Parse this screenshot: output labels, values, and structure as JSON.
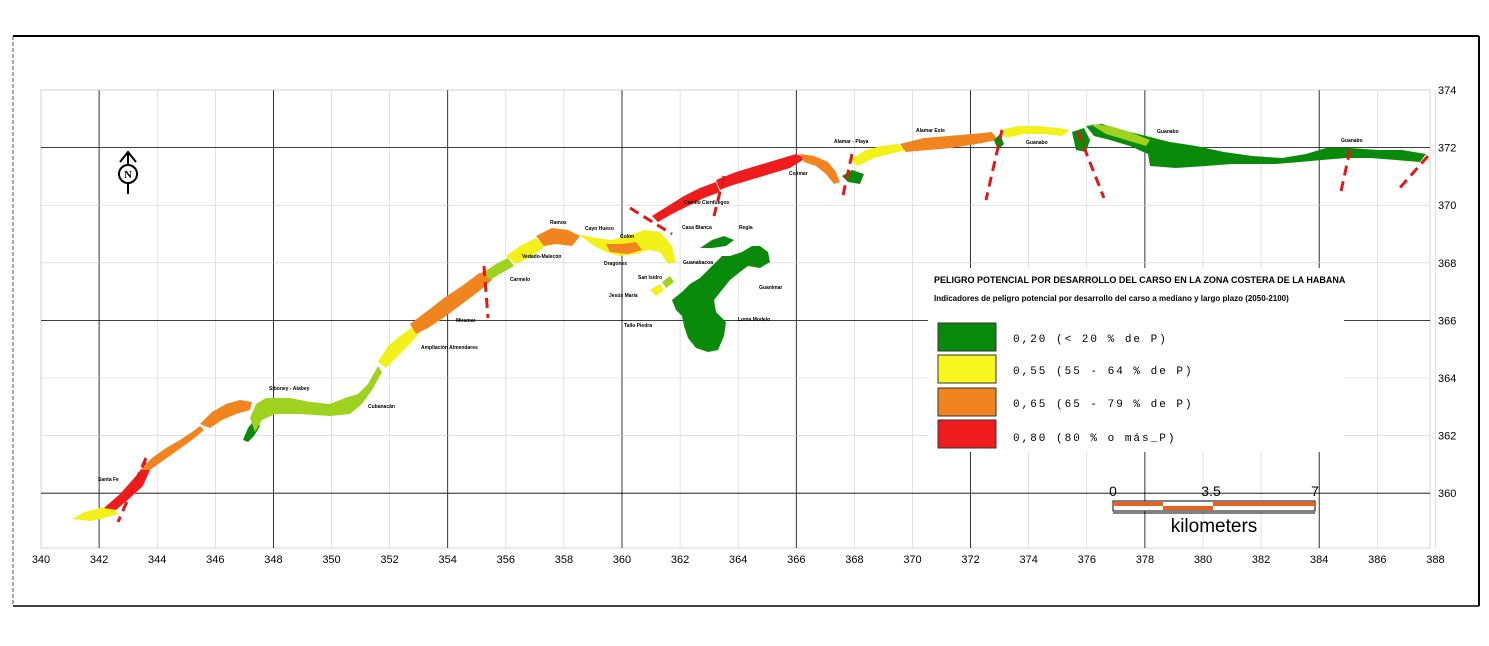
{
  "colors": {
    "very_low": "#0a8a0a",
    "low_green": "#9fd21e",
    "yellow": "#f2f21a",
    "orange": "#f0841e",
    "red": "#ee1c1c",
    "grid": "#000000"
  },
  "grid": {
    "x_labels": [
      "340",
      "342",
      "344",
      "346",
      "348",
      "350",
      "352",
      "354",
      "356",
      "358",
      "360",
      "362",
      "364",
      "366",
      "368",
      "370",
      "372",
      "374",
      "376",
      "378",
      "380",
      "382",
      "384",
      "386",
      "388"
    ],
    "y_labels": [
      "374",
      "372",
      "370",
      "368",
      "366",
      "364",
      "362",
      "360"
    ]
  },
  "north_arrow": {
    "letter": "N",
    "icon": "north-arrow-icon"
  },
  "places": [
    {
      "name": "Santa Fe"
    },
    {
      "name": "Siboney - Atabey"
    },
    {
      "name": "Cubanacán"
    },
    {
      "name": "Ampliación Almendares"
    },
    {
      "name": "Miramar"
    },
    {
      "name": "Carmelo"
    },
    {
      "name": "Vedado-Malecón"
    },
    {
      "name": "Ramos"
    },
    {
      "name": "Cayo Hueso"
    },
    {
      "name": "Colón"
    },
    {
      "name": "Dragones"
    },
    {
      "name": "San Isidro"
    },
    {
      "name": "Jesús María"
    },
    {
      "name": "Tallo Piedra"
    },
    {
      "name": "Casa Blanca"
    },
    {
      "name": "Regla"
    },
    {
      "name": "Guanabacoa"
    },
    {
      "name": "Loma Modelo"
    },
    {
      "name": "Guanimar"
    },
    {
      "name": "Camilo Cienfuegos"
    },
    {
      "name": "Cojímar"
    },
    {
      "name": "Alamar - Playa"
    },
    {
      "name": "Alamar Este"
    },
    {
      "name": "Guanabo"
    },
    {
      "name": "Guanabo"
    },
    {
      "name": "Guanabo"
    }
  ],
  "legend": {
    "title": "PELIGRO POTENCIAL POR DESARROLLO DEL CARSO EN LA ZONA COSTERA DE LA HABANA",
    "subtitle": "Indicadores de peligro potencial por desarrollo del carso a mediano y largo plazo (2050-2100)",
    "items": [
      {
        "label": "0,20  (< 20 % de P)",
        "color": "#0a8a0a"
      },
      {
        "label": "0,55 (55 - 64 % de P)",
        "color": "#f7f71f"
      },
      {
        "label": "0,65 (65 - 79 % de P)",
        "color": "#f0841e"
      },
      {
        "label": "0,80 (80 % o más_P)",
        "color": "#ee1c1c"
      }
    ]
  },
  "scale_bar": {
    "labels": [
      "0",
      "3.5",
      "7"
    ],
    "unit": "kilometers"
  }
}
